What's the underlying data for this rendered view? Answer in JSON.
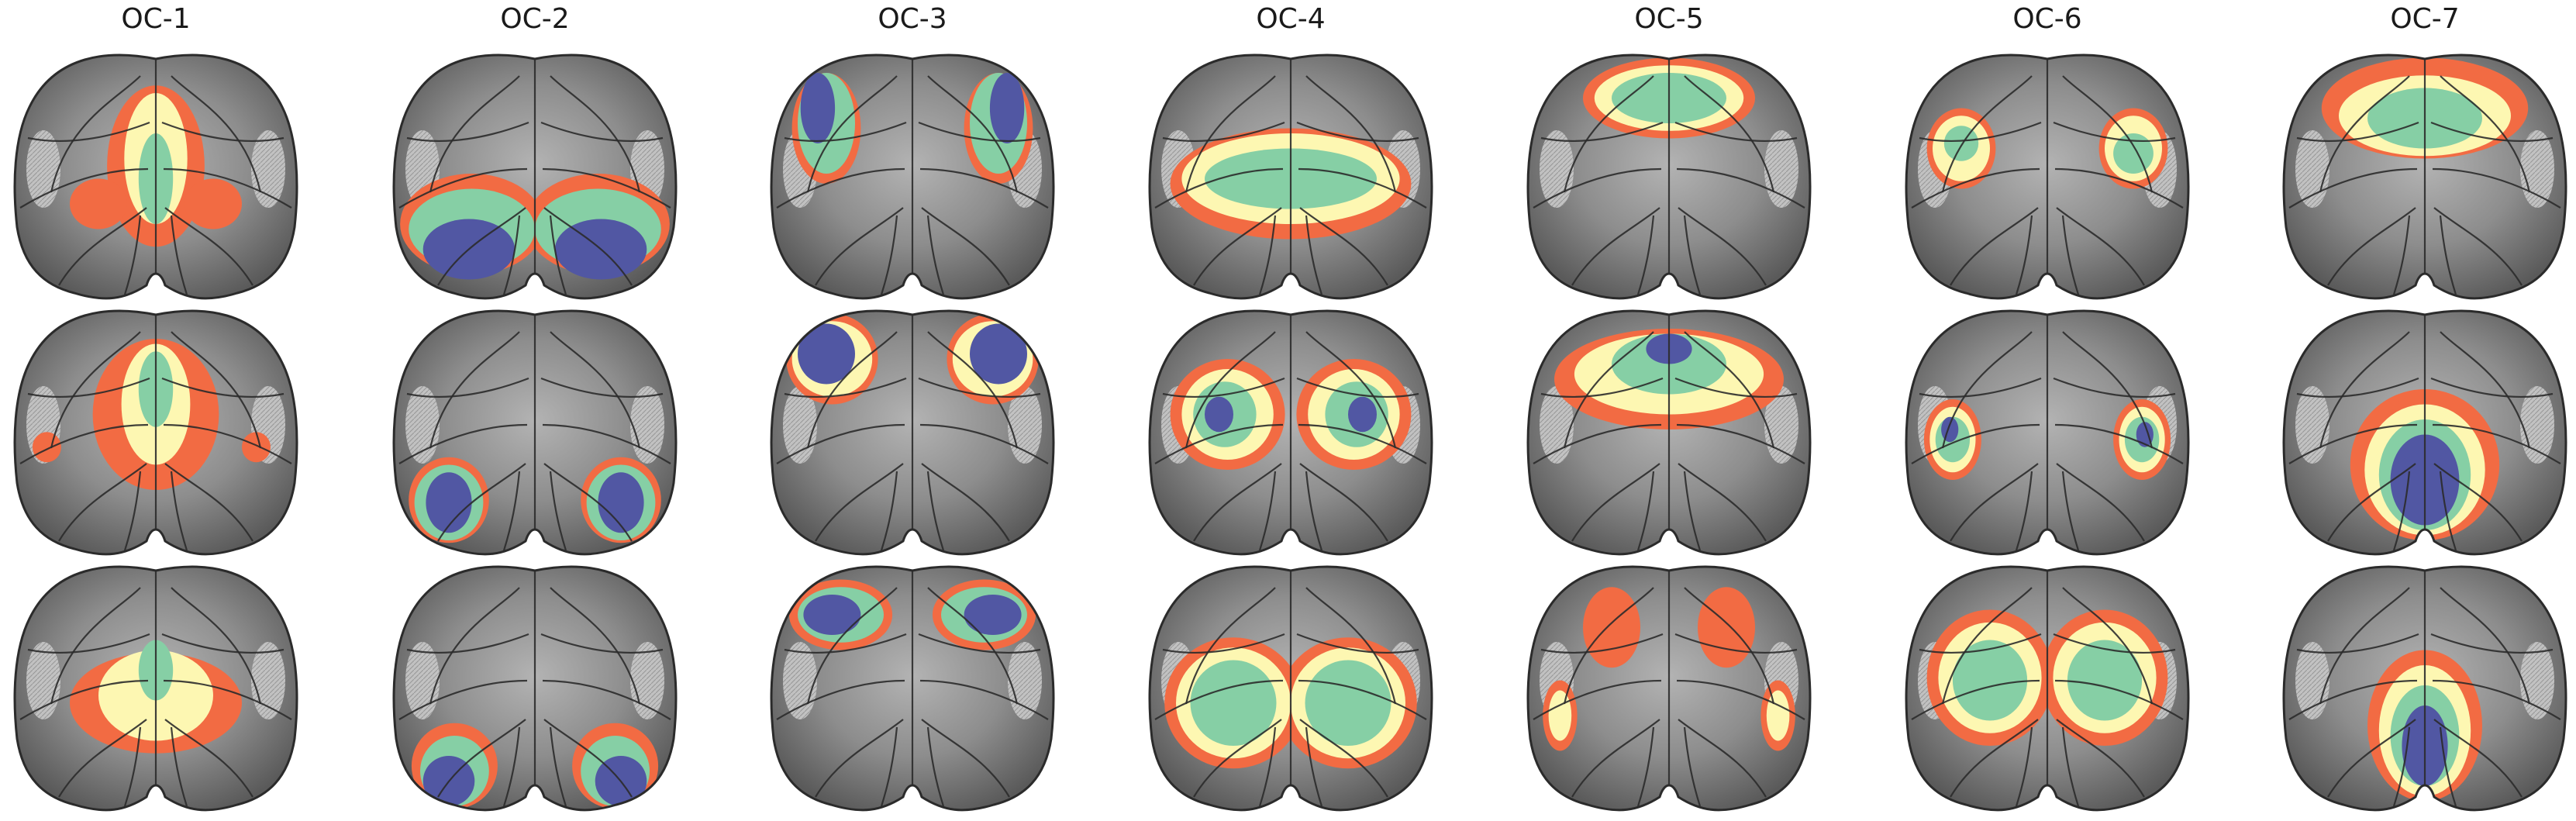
{
  "figure": {
    "columns": [
      {
        "title": "OC-1"
      },
      {
        "title": "OC-2"
      },
      {
        "title": "OC-3"
      },
      {
        "title": "OC-4"
      },
      {
        "title": "OC-5"
      },
      {
        "title": "OC-6"
      },
      {
        "title": "OC-7"
      }
    ],
    "rows": 3,
    "colors": {
      "background": "#ffffff",
      "brain_base": "#8a8a8a",
      "outline": "#2b2b2b",
      "level_low": "#f26b43",
      "level_mid_low": "#fdf7b2",
      "level_mid_high": "#86cfa5",
      "level_high": "#5157a3"
    }
  }
}
